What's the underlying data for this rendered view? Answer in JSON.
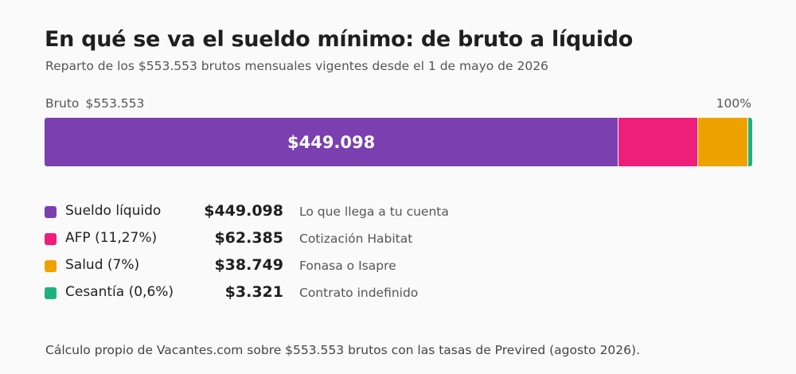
{
  "title": "En qué se va el sueldo mínimo: de bruto a líquido",
  "subtitle": "Reparto de los $553.553 brutos mensuales vigentes desde el 1 de mayo de 2026",
  "bar_labels": {
    "left_label": "Bruto",
    "left_value": "$553.553",
    "right": "100%"
  },
  "footer": "Cálculo propio de Vacantes.com sobre $553.553 brutos con las tasas de Previred (agosto 2026).",
  "chart_data": {
    "type": "bar",
    "orientation": "horizontal-stacked",
    "total": 553553,
    "total_label": "$553.553",
    "series": [
      {
        "name": "Sueldo líquido",
        "value": 449098,
        "amount_label": "$449.098",
        "note": "Lo que llega a tu cuenta",
        "color": "#7b3fb0",
        "bar_label": "$449.098"
      },
      {
        "name": "AFP (11,27%)",
        "value": 62385,
        "amount_label": "$62.385",
        "note": "Cotización Habitat",
        "color": "#ee1f7a",
        "bar_label": ""
      },
      {
        "name": "Salud (7%)",
        "value": 38749,
        "amount_label": "$38.749",
        "note": "Fonasa o Isapre",
        "color": "#eea200",
        "bar_label": ""
      },
      {
        "name": "Cesantía (0,6%)",
        "value": 3321,
        "amount_label": "$3.321",
        "note": "Contrato indefinido",
        "color": "#20b07e",
        "bar_label": ""
      }
    ]
  }
}
